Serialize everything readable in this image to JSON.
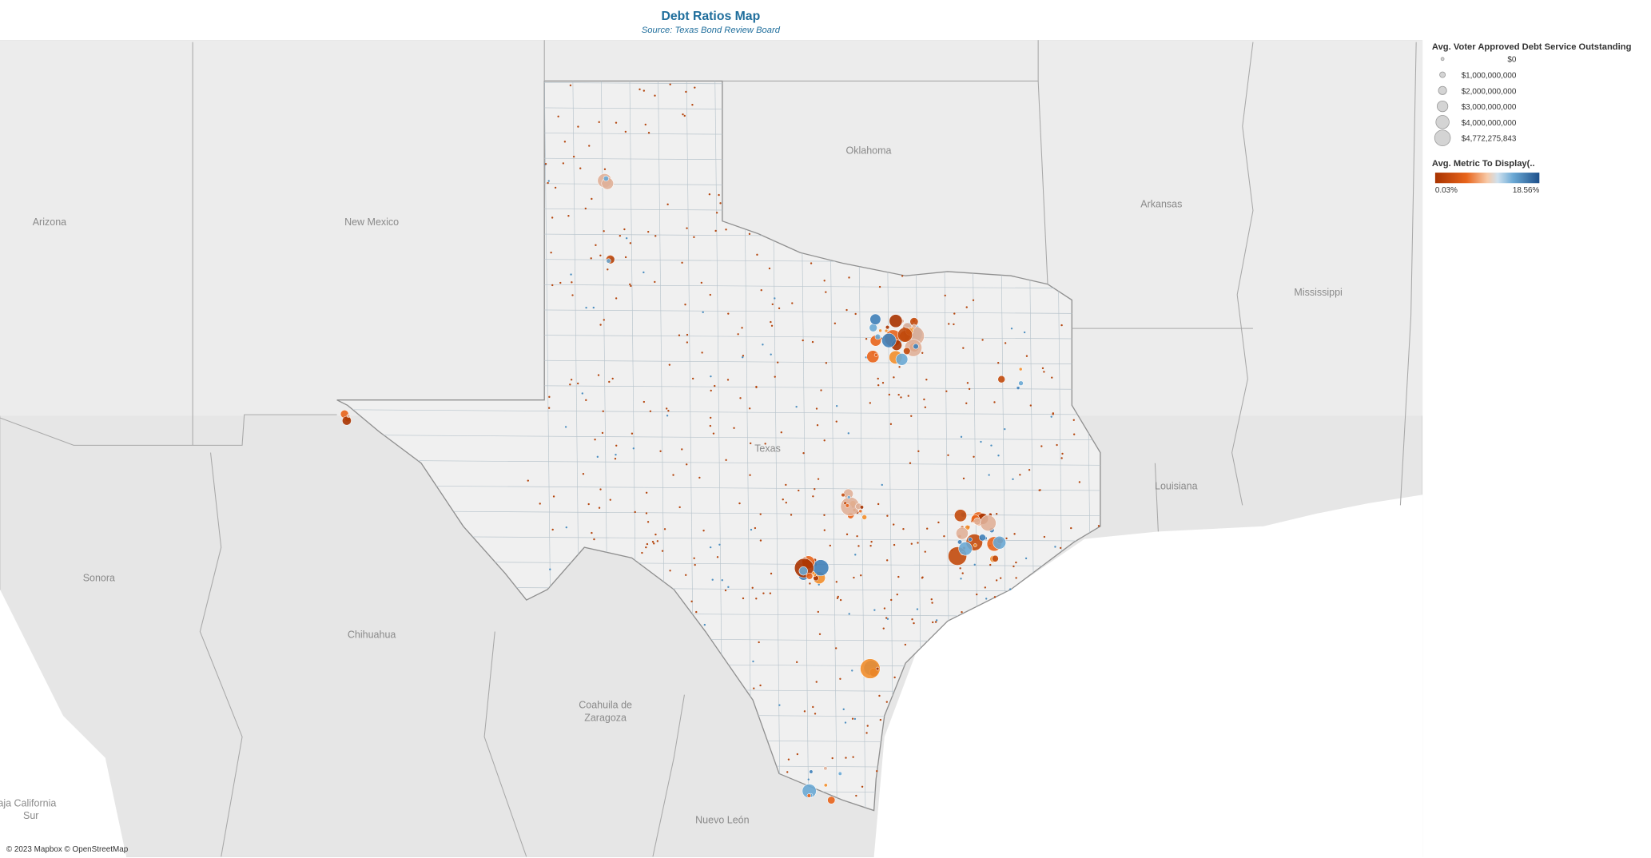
{
  "header": {
    "title": "Debt Ratios Map",
    "subtitle": "Source: Texas Bond Review Board"
  },
  "legend": {
    "size": {
      "title": "Avg. Voter Approved Debt Service Outstanding",
      "items": [
        "$0",
        "$1,000,000,000",
        "$2,000,000,000",
        "$3,000,000,000",
        "$4,000,000,000",
        "$4,772,275,843"
      ]
    },
    "color": {
      "title": "Avg. Metric To Display(..",
      "min_label": "0.03%",
      "max_label": "18.56%"
    }
  },
  "map": {
    "labels": [
      "Oklahoma",
      "Arizona",
      "New Mexico",
      "Arkansas",
      "Mississippi",
      "Texas",
      "Louisiana",
      "Sonora",
      "Chihuahua",
      "Coahuila de",
      "Zaragoza",
      "Nuevo León",
      "aja California",
      "Sur"
    ],
    "attribution": "© 2023 Mapbox © OpenStreetMap"
  }
}
